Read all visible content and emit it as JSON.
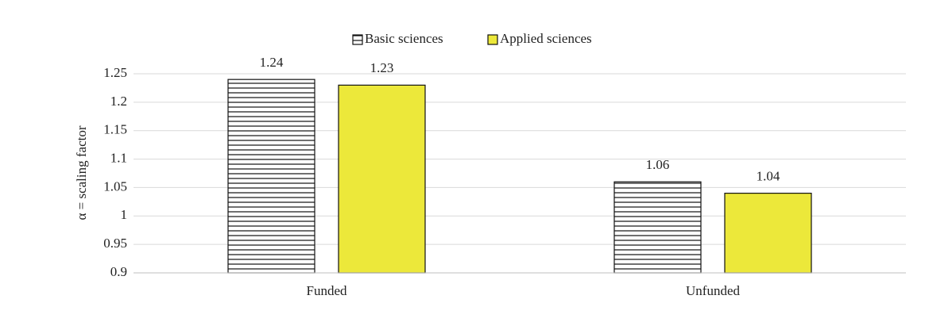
{
  "chart_data": {
    "type": "bar",
    "ylabel": "α = scaling factor",
    "categories": [
      "Funded",
      "Unfunded"
    ],
    "series": [
      {
        "name": "Basic sciences",
        "color": "#ffffff",
        "hatch": "horizontal",
        "values": [
          1.24,
          1.06
        ]
      },
      {
        "name": "Applied sciences",
        "color": "#ece83a",
        "values": [
          1.23,
          1.04
        ]
      }
    ],
    "ylim": [
      0.9,
      1.25
    ],
    "yticks": [
      0.9,
      0.95,
      1,
      1.05,
      1.1,
      1.15,
      1.2,
      1.25
    ],
    "grid": true,
    "legend": "top"
  }
}
